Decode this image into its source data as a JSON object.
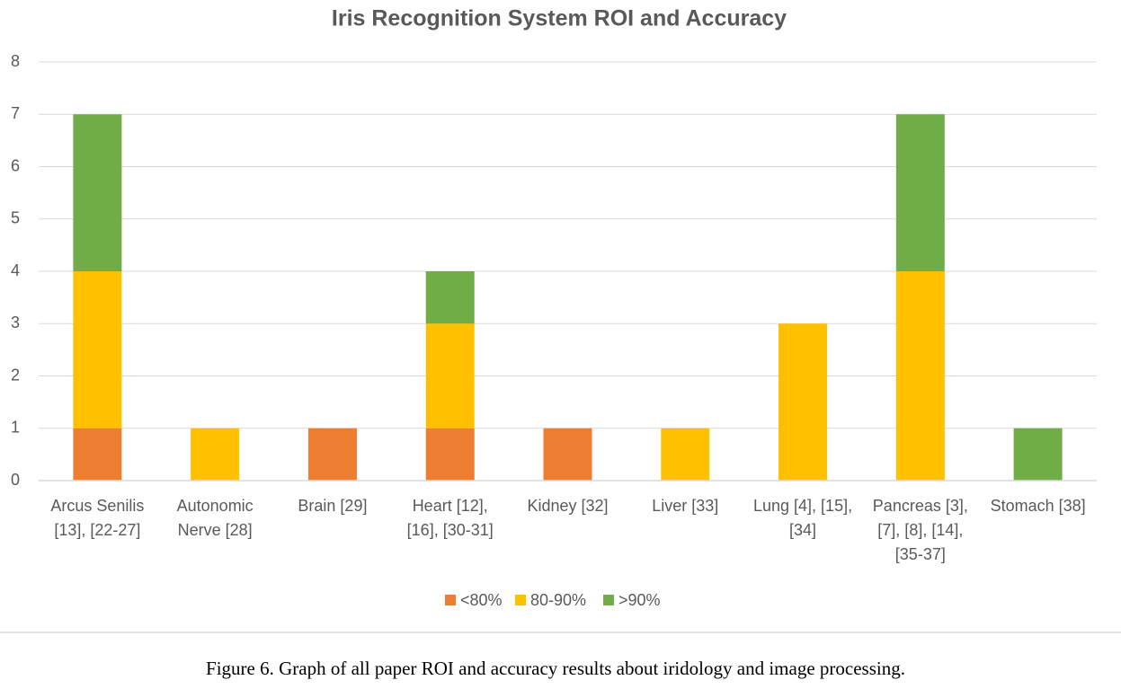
{
  "chart_data": {
    "type": "stacked_bar",
    "title": "Iris Recognition System ROI and Accuracy",
    "categories": [
      [
        "Arcus Senilis",
        "[13], [22-27]"
      ],
      [
        "Autonomic",
        "Nerve [28]"
      ],
      [
        "Brain [29]"
      ],
      [
        "Heart [12],",
        "[16], [30-31]"
      ],
      [
        "Kidney [32]"
      ],
      [
        "Liver [33]"
      ],
      [
        "Lung [4], [15],",
        "[34]"
      ],
      [
        "Pancreas [3],",
        "[7], [8], [14],",
        "[35-37]"
      ],
      [
        "Stomach [38]"
      ]
    ],
    "series": [
      {
        "name": "<80%",
        "color": "#ed7d31",
        "values": [
          1,
          0,
          1,
          1,
          1,
          0,
          0,
          0,
          0
        ]
      },
      {
        "name": "80-90%",
        "color": "#ffc000",
        "values": [
          3,
          1,
          0,
          2,
          0,
          1,
          3,
          4,
          0
        ]
      },
      {
        "name": ">90%",
        "color": "#70ad47",
        "values": [
          3,
          0,
          0,
          1,
          0,
          0,
          0,
          3,
          1
        ]
      }
    ],
    "ylim": [
      0,
      8
    ],
    "yticks": [
      0,
      1,
      2,
      3,
      4,
      5,
      6,
      7,
      8
    ],
    "grid": true,
    "legend": "bottom"
  },
  "caption": "Figure 6. Graph of all paper ROI and accuracy results about iridology and image processing."
}
